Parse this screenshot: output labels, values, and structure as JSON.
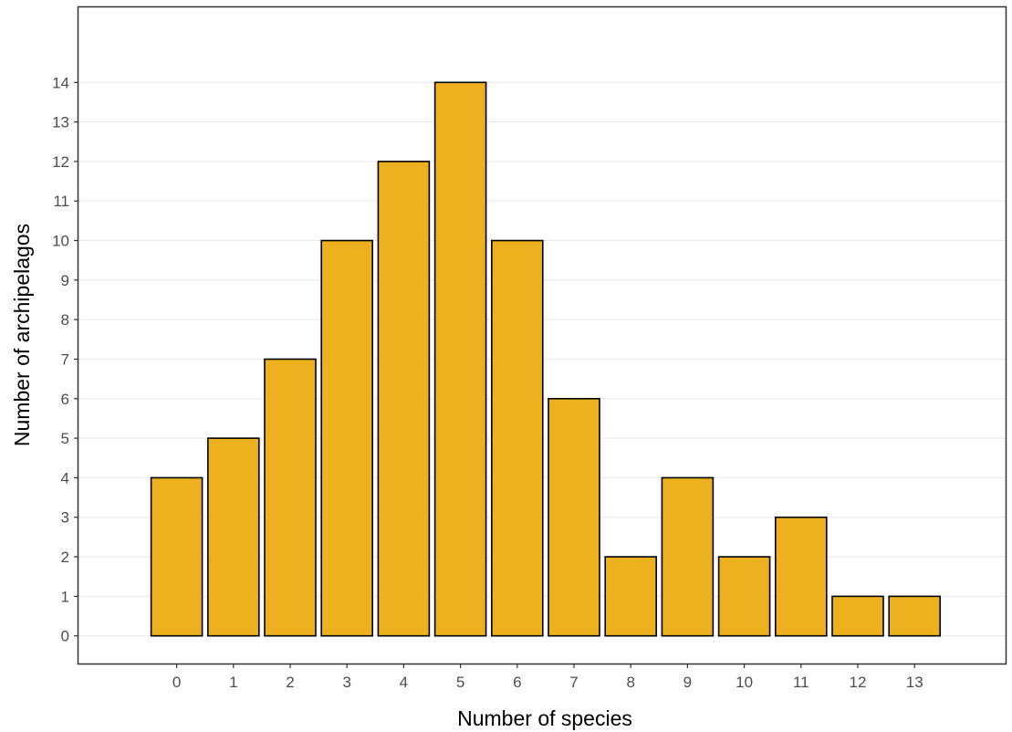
{
  "chart_data": {
    "type": "bar",
    "title": "",
    "xlabel": "Number of species",
    "ylabel": "Number of archipelagos",
    "categories": [
      "0",
      "1",
      "2",
      "3",
      "4",
      "5",
      "6",
      "7",
      "8",
      "9",
      "10",
      "11",
      "12",
      "13"
    ],
    "values": [
      4,
      5,
      7,
      10,
      12,
      14,
      10,
      6,
      2,
      4,
      2,
      3,
      1,
      1
    ],
    "ylim": [
      -0.7,
      15.9
    ],
    "yticks": [
      0,
      1,
      2,
      3,
      4,
      5,
      6,
      7,
      8,
      9,
      10,
      11,
      12,
      13,
      14
    ],
    "grid": "horizontal major",
    "legend": "none",
    "colors": {
      "bar_fill": "#EDB120",
      "bar_stroke": "#000000",
      "grid": "#EBEBEB",
      "panel_border": "#333333",
      "tick_label": "#4D4D4D"
    }
  }
}
